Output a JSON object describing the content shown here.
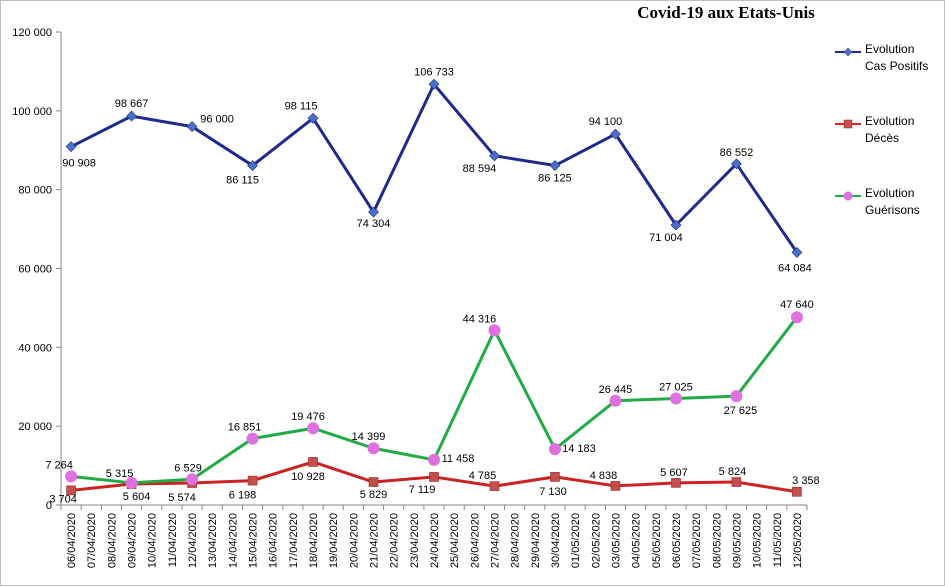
{
  "chart_data": {
    "type": "line",
    "title": "Covid-19 aux Etats-Unis",
    "xlabel": "",
    "ylabel": "",
    "ylim": [
      0,
      120000
    ],
    "yticks": [
      0,
      20000,
      40000,
      60000,
      80000,
      100000,
      120000
    ],
    "ytick_labels": [
      "0",
      "20 000",
      "40 000",
      "60 000",
      "80 000",
      "100 000",
      "120 000"
    ],
    "grid": false,
    "legend_position": "right",
    "categories": [
      "06/04/2020",
      "07/04/2020",
      "08/04/2020",
      "09/04/2020",
      "10/04/2020",
      "11/04/2020",
      "12/04/2020",
      "13/04/2020",
      "14/04/2020",
      "15/04/2020",
      "16/04/2020",
      "17/04/2020",
      "18/04/2020",
      "19/04/2020",
      "20/04/2020",
      "21/04/2020",
      "22/04/2020",
      "23/04/2020",
      "24/04/2020",
      "25/04/2020",
      "26/04/2020",
      "27/04/2020",
      "28/04/2020",
      "29/04/2020",
      "30/04/2020",
      "01/05/2020",
      "02/05/2020",
      "03/05/2020",
      "04/05/2020",
      "05/05/2020",
      "06/05/2020",
      "07/05/2020",
      "08/05/2020",
      "09/05/2020",
      "10/05/2020",
      "11/05/2020",
      "12/05/2020"
    ],
    "series": [
      {
        "name": "Evolution Cas Positifs",
        "legend_lines": [
          "Evolution",
          "Cas Positifs"
        ],
        "color": "#1f2a8c",
        "marker": "diamond",
        "points": [
          {
            "x": "06/04/2020",
            "y": 90908,
            "label": "90 908"
          },
          {
            "x": "09/04/2020",
            "y": 98667,
            "label": "98 667"
          },
          {
            "x": "12/04/2020",
            "y": 96000,
            "label": "96 000"
          },
          {
            "x": "15/04/2020",
            "y": 86115,
            "label": "86 115"
          },
          {
            "x": "18/04/2020",
            "y": 98115,
            "label": "98 115"
          },
          {
            "x": "21/04/2020",
            "y": 74304,
            "label": "74 304"
          },
          {
            "x": "24/04/2020",
            "y": 106733,
            "label": "106 733"
          },
          {
            "x": "27/04/2020",
            "y": 88594,
            "label": "88 594"
          },
          {
            "x": "30/04/2020",
            "y": 86125,
            "label": "86 125"
          },
          {
            "x": "03/05/2020",
            "y": 94100,
            "label": "94 100"
          },
          {
            "x": "06/05/2020",
            "y": 71004,
            "label": "71 004"
          },
          {
            "x": "09/05/2020",
            "y": 86552,
            "label": "86 552"
          },
          {
            "x": "12/05/2020",
            "y": 64084,
            "label": "64 084"
          }
        ]
      },
      {
        "name": "Evolution Décès",
        "legend_lines": [
          "Evolution",
          "Décès"
        ],
        "color": "#cc2222",
        "marker": "square",
        "points": [
          {
            "x": "06/04/2020",
            "y": 3704,
            "label": "3 704"
          },
          {
            "x": "09/04/2020",
            "y": 5315,
            "label": "5 315"
          },
          {
            "x": "12/04/2020",
            "y": 5574,
            "label": "5 574"
          },
          {
            "x": "15/04/2020",
            "y": 6198,
            "label": "6 198"
          },
          {
            "x": "18/04/2020",
            "y": 10928,
            "label": "10 928"
          },
          {
            "x": "21/04/2020",
            "y": 5829,
            "label": "5 829"
          },
          {
            "x": "24/04/2020",
            "y": 7119,
            "label": "7 119"
          },
          {
            "x": "27/04/2020",
            "y": 4785,
            "label": "4 785"
          },
          {
            "x": "30/04/2020",
            "y": 7130,
            "label": "7 130"
          },
          {
            "x": "03/05/2020",
            "y": 4838,
            "label": "4 838"
          },
          {
            "x": "06/05/2020",
            "y": 5607,
            "label": "5 607"
          },
          {
            "x": "09/05/2020",
            "y": 5824,
            "label": "5 824"
          },
          {
            "x": "12/05/2020",
            "y": 3358,
            "label": "3 358"
          }
        ]
      },
      {
        "name": "Evolution Guérisons",
        "legend_lines": [
          "Evolution",
          "Guérisons"
        ],
        "color": "#22aa44",
        "marker_color": "#e070e0",
        "marker": "circle",
        "points": [
          {
            "x": "06/04/2020",
            "y": 7264,
            "label": "7 264"
          },
          {
            "x": "09/04/2020",
            "y": 5604,
            "label": "5 604"
          },
          {
            "x": "12/04/2020",
            "y": 6529,
            "label": "6 529"
          },
          {
            "x": "15/04/2020",
            "y": 16851,
            "label": "16 851"
          },
          {
            "x": "18/04/2020",
            "y": 19476,
            "label": "19 476"
          },
          {
            "x": "21/04/2020",
            "y": 14399,
            "label": "14 399"
          },
          {
            "x": "24/04/2020",
            "y": 11458,
            "label": "11 458"
          },
          {
            "x": "27/04/2020",
            "y": 44316,
            "label": "44 316"
          },
          {
            "x": "30/04/2020",
            "y": 14183,
            "label": "14 183"
          },
          {
            "x": "03/05/2020",
            "y": 26445,
            "label": "26 445"
          },
          {
            "x": "06/05/2020",
            "y": 27025,
            "label": "27 025"
          },
          {
            "x": "09/05/2020",
            "y": 27625,
            "label": "27 625"
          },
          {
            "x": "12/05/2020",
            "y": 47640,
            "label": "47 640"
          }
        ]
      }
    ]
  }
}
